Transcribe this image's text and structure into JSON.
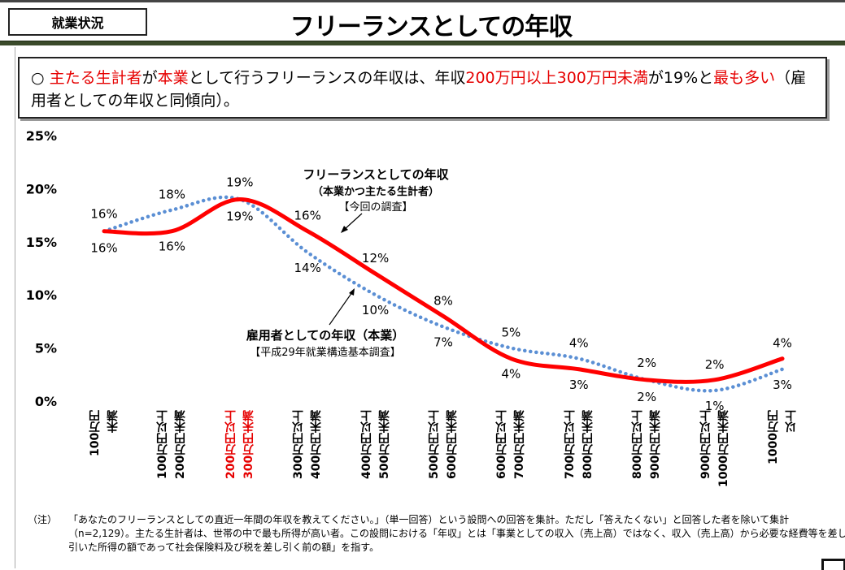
{
  "header": {
    "section": "就業状況",
    "title": "フリーランスとしての年収"
  },
  "summary": {
    "bullet": "○",
    "parts": [
      {
        "text": "主たる生計者",
        "red": true
      },
      {
        "text": "が",
        "red": false
      },
      {
        "text": "本業",
        "red": true
      },
      {
        "text": "として行うフリーランスの年収は、年収",
        "red": false
      },
      {
        "text": "200万円以上300万円未満",
        "red": true
      },
      {
        "text": "が19%と",
        "red": false
      },
      {
        "text": "最も多い",
        "red": true
      },
      {
        "text": "（雇用者としての年収と同傾向）。",
        "red": false
      }
    ]
  },
  "chart_data": {
    "type": "line",
    "categories": [
      "100万円\n未満",
      "100万円以上\n200万円未満",
      "200万円以上\n300万円未満",
      "300万円以上\n400万円未満",
      "400万円以上\n500万円未満",
      "500万円以上\n600万円未満",
      "600万円以上\n700万円未満",
      "700万円以上\n800万円未満",
      "800万円以上\n900万円未満",
      "900万円以上\n1000万円未満",
      "1000万円\n以上"
    ],
    "highlight_category_index": 2,
    "y_ticks": [
      "0%",
      "5%",
      "10%",
      "15%",
      "20%",
      "25%"
    ],
    "ylim": [
      0,
      25
    ],
    "grid": false,
    "series": [
      {
        "name": "フリーランスとしての年収",
        "sub": "（本業かつ主たる生計者）",
        "source": "【今回の調査】",
        "style": "solid",
        "color": "#ff0000",
        "values": [
          16,
          16,
          19,
          16,
          12,
          8,
          4,
          3,
          2,
          2,
          4
        ]
      },
      {
        "name": "雇用者としての年収（本業）",
        "source": "【平成29年就業構造基本調査】",
        "style": "dotted",
        "color": "#5b8fd4",
        "values": [
          16,
          18,
          19,
          14,
          10,
          7,
          5,
          4,
          2,
          1,
          3
        ]
      }
    ]
  },
  "note": {
    "label": "（注）",
    "text": "「あなたのフリーランスとしての直近一年間の年収を教えてください。」（単一回答）という設問への回答を集計。ただし「答えたくない」と回答した者を除いて集計（n=2,129）。主たる生計者は、世帯の中で最も所得が高い者。この設問における「年収」とは「事業としての収入（売上高）ではなく、収入（売上高）から必要な経費等を差し引いた所得の額であって社会保険料及び税を差し引く前の額」を指す。"
  }
}
